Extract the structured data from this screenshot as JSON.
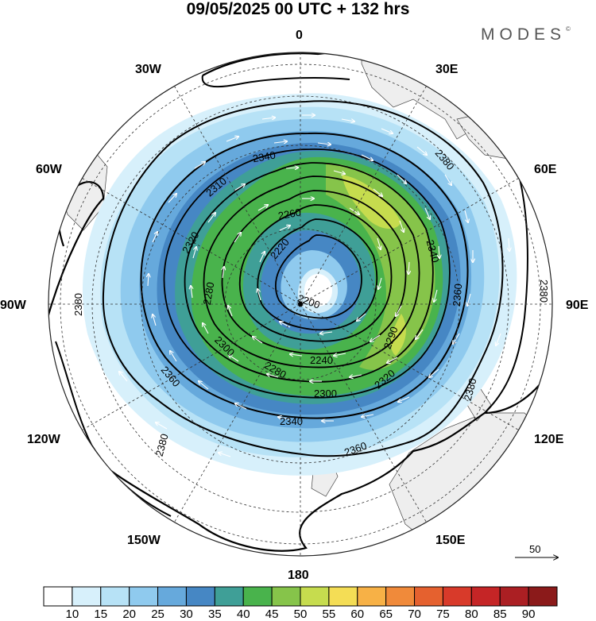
{
  "header": {
    "title": "09/05/2025  00 UTC  + 132 hrs",
    "brand": "MODES",
    "brand_mark": "©"
  },
  "map": {
    "projection": "south-polar-stereographic",
    "longitude_labels": [
      "0",
      "30E",
      "60E",
      "90E",
      "120E",
      "150E",
      "180",
      "150W",
      "120W",
      "90W",
      "60W",
      "30W"
    ],
    "contour_labels": [
      "2200",
      "2220",
      "2240",
      "2260",
      "2280",
      "2290",
      "2300",
      "2310",
      "2320",
      "2340",
      "2360",
      "2380"
    ],
    "vector_scale": {
      "label": "50"
    }
  },
  "colorbar": {
    "ticks": [
      "10",
      "15",
      "20",
      "25",
      "30",
      "35",
      "40",
      "45",
      "50",
      "55",
      "60",
      "65",
      "70",
      "75",
      "80",
      "85",
      "90"
    ],
    "colors": [
      "#ffffff",
      "#d7f0fb",
      "#b7e2f6",
      "#8fcaee",
      "#66a9dc",
      "#4687c4",
      "#3f9f97",
      "#49b34c",
      "#86c44a",
      "#c6dc4e",
      "#f4dd55",
      "#f7b146",
      "#f08a3a",
      "#e5612f",
      "#d83a2a",
      "#c52526",
      "#ab1f23",
      "#8b1a1a"
    ]
  }
}
